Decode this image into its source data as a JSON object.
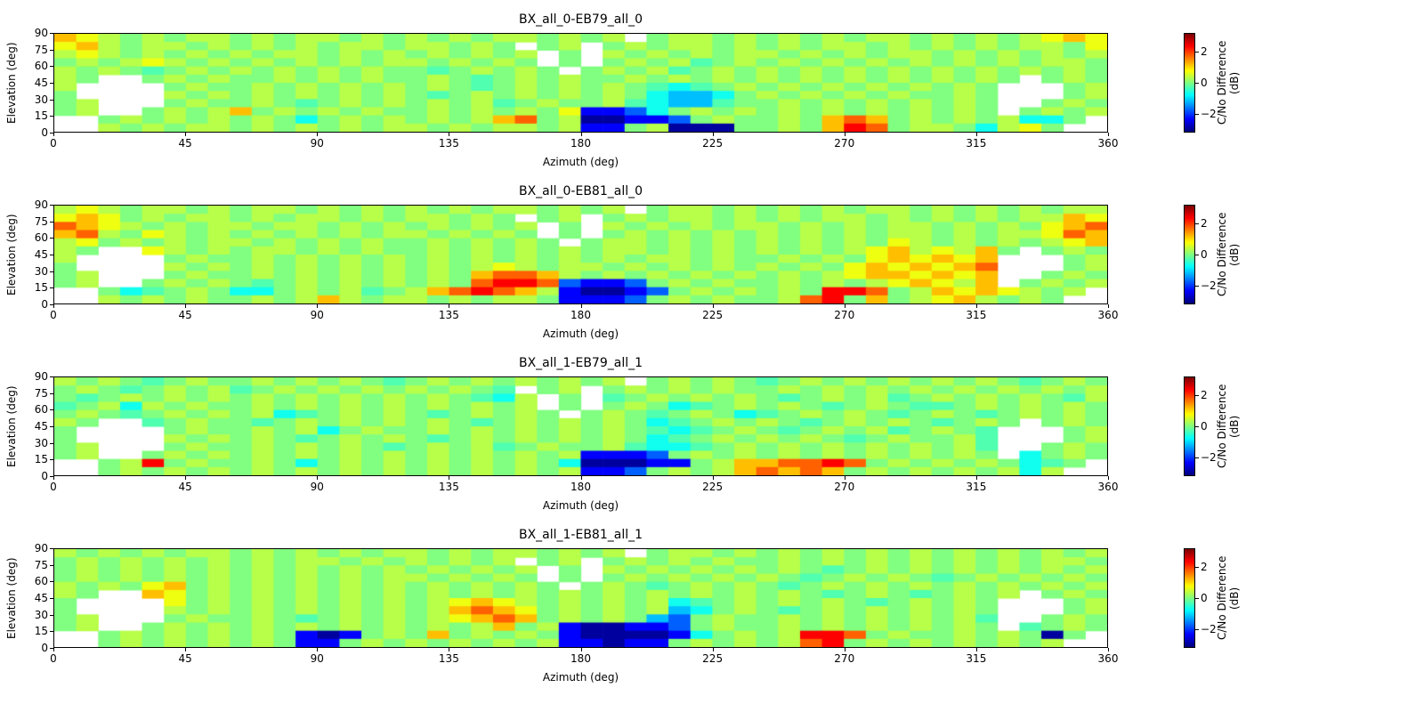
{
  "axes": {
    "xlabel": "Azimuth (deg)",
    "ylabel": "Elevation (deg)",
    "x_ticks": [
      0,
      45,
      90,
      135,
      180,
      225,
      270,
      315,
      360
    ],
    "y_ticks": [
      0,
      15,
      30,
      45,
      60,
      75,
      90
    ],
    "x_range": [
      0,
      360
    ],
    "y_range": [
      0,
      90
    ]
  },
  "colorbar": {
    "label": "C/No Difference (dB)",
    "colormap": "jet",
    "vmin": -3.2,
    "vmax": 3.2,
    "ticks": [
      {
        "value": 2,
        "label": "2"
      },
      {
        "value": 0,
        "label": "0"
      },
      {
        "value": -2,
        "label": "−2"
      }
    ]
  },
  "heatmap_encoding": {
    "A": -3,
    "B": -2.4,
    "C": -1.8,
    "D": -1.2,
    "E": -0.7,
    "F": -0.3,
    "G": 0,
    "H": 0.35,
    "I": 0.7,
    "J": 1.2,
    "K": 1.8,
    "L": 2.4,
    "M": 3
  },
  "chart_data": [
    {
      "type": "heatmap",
      "title": "BX_all_0-EB79_all_0",
      "units": "dB",
      "x_bins": 48,
      "y_bins": 12,
      "x_range": [
        0,
        360
      ],
      "y_range": [
        0,
        90
      ],
      "rows": [
        "JIHGHGHHGHGHHGHGHGHGHHGHGH.GHHGHGHGHGHHGHGHGHIJI",
        "IJHGHHGHGHGHGHHGHHGHG.GH.GHGHHGHGHGHHGHGHGHGHHGI",
        "HIHGHGHGHGHHGHGHGHGHGH.G.HGHGHGHHGHGHGHHGHGHGHGH",
        "GHGHIHGHGHGHGHGHHGHGHG.G.GHGHFGHGHGHGHGHGHGHGHHG",
        "HGHGFGHGHGHGHGHGGFGHGHG.GHGHFGHGHGHGHGHGHGHGHGHG",
        "HG..GHGHGGHGHGHGGHGFGHGHGGHGHGHGHGHGHGHGHGHG.GHG",
        "H....GHGGHGHGHGHGHGFGHGHGHGFEFGHGHGHGHGHGHG...GH",
        "G....HGHGHGHGHGHGFGHGHGHGHGEDDEGHGHGHGHGGHG...GH",
        "GH...GHGGHGFGHGHGHGHFGHGGHFEDDFGGHGHGHGHGHG..GHG",
        "GH..GHGHJGHGHGHGGHGHGHGIBBCEGHGHGHGHGHGHGHG.GHGH",
        "..GHGHGHGHGEGHGHGHGHJKGHAABBCGHGGHGJKJGHGHGHEEG.",
        "..HGHGHHGHGHGHGHHGHGHHGHBBGHAAAGGHGJLKGHHGEHIG.."
      ]
    },
    {
      "type": "heatmap",
      "title": "BX_all_0-EB81_all_0",
      "units": "dB",
      "x_bins": 48,
      "y_bins": 12,
      "x_range": [
        0,
        360
      ],
      "y_range": [
        0,
        90
      ],
      "rows": [
        "HIHGHHGHGHHGHGHGHGHGHHGHGH.GHHGHGHGHGHHGHGHGHGHH",
        "IJIGHGHHGHGHHGHGHHGHG.GH.GHGHHGHGHGHHGHGHGHGHHJI",
        "KJIHGHGHHGHHGHGHGHGHGH.G.HGHGHGHHGHGHGHHGHGHGIJK",
        "JKHGIHGHGHGHGHGHHGHGHG.G.GHGHGHGHGHGHGHHGHGHHIKJ",
        "HIGHGHGHHGHGHGHGGHGHGHG.GHHGHGHGHGHGHGIHGHGHGHIJ",
        "HG..IHGHGHHGHGHGGHGHGHGHGHHGHGHGHGHGHIJHIHJG.GHG",
        "H....GHGGHGHGHGHGHGHGHGHGHGHHGHGGHGHGIJIJIJ...GH",
        "G....HGHGHGHGHGHGHGHIHGHHGHGHGHGHGHGIJIJIJK...GH",
        "GH...GHGGHGHGHGHGHGJKKJHGHGHGHGHGHGHIJJIJIJ..GHG",
        "GH..GHGHGFGHGHGHGHGKLLKCBBCGHGHGGHGHGHIJIHJ.GHGH",
        "..GEFGHGEEGHGHFGHJKLKJHBAABCGHGHGHGLLKGHJIJIHGH.",
        "..HGHGHGGHGHJHGHHGHGHHGBBBCGHGHGGHKLGJGHIJHGHG.."
      ]
    },
    {
      "type": "heatmap",
      "title": "BX_all_1-EB79_all_1",
      "units": "dB",
      "x_bins": 48,
      "y_bins": 12,
      "x_range": [
        0,
        360
      ],
      "y_range": [
        0,
        90
      ],
      "rows": [
        "HGHGFGHGGHGHGHGFGHGHGHGHGH.GHGHGFGHGHGHGHGHGFGHG",
        "GHGFGHGHFGHGHGHGHGHGF.GH.GHGHGHGGHGHGHGHGHGHGHGH",
        "GFGHGHGHGHGHGHGHGHGFEH.G.FGHGHGHGFGHGHFGHGHGHGFH",
        "FGHEHGHGGHGHGHGHGHGHGH.G.GHGEFGHGHGFGHGFFGHGHGHG",
        "GHGFGHGHGHEFGHGHGFGHGHG.GHGFGHGEFGHGHGFGHGFGHGHG",
        "HG..FGHGGFGHGHGHGHGFGHGHGHGEFGHGHGFGHGHGFGHG.GHG",
        "G....GHGGHGHEGHGGHGHGHGHGHGFEFGHGFGHGHFGHGF...GH",
        "G....HGHGHGFGHGHGFGHGHGHGHGEFGHGHGHGFGHGGHF...GH",
        "GH...GHGGHGHGHGFGHGHFGHGGHFEEFGHGHGHGHGHGHF..GHG",
        "GH..GHGHGHGHGHGHGHGHGHGHBBBCGHGHGHGHGHGHGHG.EGHG",
        "..GHLGHGGHGEGHGHGHGHGHGEAAABBGHJJKKLKGHGHGHGEFG.",
        "..GHGHGHGHGHGHGHGHGHGHGHBBCGHGHJKJKJGHGHGHGHEH.."
      ]
    },
    {
      "type": "heatmap",
      "title": "BX_all_1-EB81_all_1",
      "units": "dB",
      "x_bins": 48,
      "y_bins": 12,
      "x_range": [
        0,
        360
      ],
      "y_range": [
        0,
        90
      ],
      "rows": [
        "HGHGHGHHGHGHGHGHHGHGHHGHGH.GHHGHGHGHGHGHGHGHGHGH",
        "GHGHGHGHGHGHHGHGHGHGH.GH.GHGHGHGGHGHGHGHGHGHGHHG",
        "GHGHGHGHGHGHGHGHGHGHGH.G.HGHGHGHGHGFGHGHGHGHGHGH",
        "GHGHGHGHGHGHGHGHHGHGHG.G.GHGHGHGHGFGHGHGFGHGHGHG",
        "HGHGIJGHGHGHGHGHGHGHGHG.GHGFGHGHGFGHGHGHGHGHGHGH",
        "HG..JIGHGHGHGHGHGHGHGHGHGHGHGHGHGHGFGHGFGHGH.GHG",
        "G....IGHGHGHGHGHGHIJIHGHGHGHEFGHGHGHGFGHGHG...GH",
        "G....HGHGHGHGHGHGHJKJIGHGHGHDEGHGFGHGHGHGHG...GH",
        "GH...GHGGHGFGHGHGHIJKJGHGHGDCGHGGHGHGHGHGHF..GHG",
        "GH..GHGHGHGHGHGHGHGHJGHBAABBCGHGGHGHGHGHGHG.FGHG",
        "..GHGHGHGHGBABGHGJGHGHGBAAAABEGHGHLLKGHGGHGHGAG.",
        "..GHGHGHGHGBBGHGHGHGHGHBBABBGHGHGHKLGHGHGHGHGH.."
      ]
    }
  ]
}
